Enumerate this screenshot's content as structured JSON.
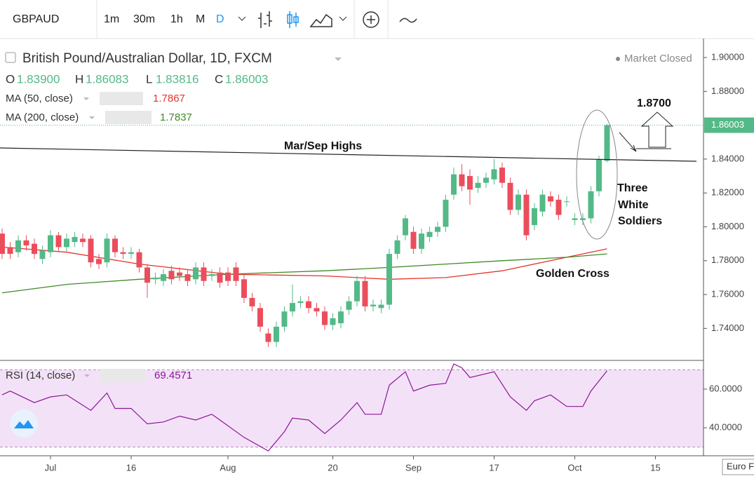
{
  "toolbar": {
    "symbol": "GBPAUD",
    "intervals": [
      "1m",
      "30m",
      "1h",
      "M",
      "D"
    ]
  },
  "chart_data": {
    "type": "candlestick",
    "title": "British Pound/Australian Dollar, 1D, FXCM",
    "status": "Market Closed",
    "ohlc_labels": [
      {
        "key": "O",
        "value": "1.83900"
      },
      {
        "key": "H",
        "value": "1.86083"
      },
      {
        "key": "L",
        "value": "1.83816"
      },
      {
        "key": "C",
        "value": "1.86003"
      }
    ],
    "up_color": "#53b987",
    "down_color": "#eb4d5c",
    "open": [
      1.796,
      1.788,
      1.785,
      1.792,
      1.79,
      1.781,
      1.785,
      1.795,
      1.788,
      1.791,
      1.793,
      1.793,
      1.781,
      1.779,
      1.793,
      1.785,
      1.784,
      1.785,
      1.776,
      1.769,
      1.768,
      1.774,
      1.773,
      1.772,
      1.769,
      1.776,
      1.771,
      1.773,
      1.773,
      1.776,
      1.769,
      1.758,
      1.752,
      1.737,
      1.732,
      1.741,
      1.75,
      1.755,
      1.756,
      1.752,
      1.75,
      1.742,
      1.743,
      1.751,
      1.756,
      1.768,
      1.753,
      1.752,
      1.754,
      1.784,
      1.795,
      1.797,
      1.787,
      1.794,
      1.797,
      1.8,
      1.819,
      1.831,
      1.83,
      1.823,
      1.826,
      1.828,
      1.835,
      1.826,
      1.81,
      1.819,
      1.801,
      1.809,
      1.818,
      1.816,
      1.815,
      1.804,
      1.804,
      1.805,
      1.821,
      1.839
    ],
    "high": [
      1.799,
      1.791,
      1.795,
      1.795,
      1.793,
      1.789,
      1.798,
      1.797,
      1.796,
      1.797,
      1.796,
      1.795,
      1.784,
      1.796,
      1.795,
      1.788,
      1.788,
      1.787,
      1.778,
      1.773,
      1.775,
      1.777,
      1.776,
      1.775,
      1.779,
      1.779,
      1.775,
      1.776,
      1.776,
      1.779,
      1.772,
      1.761,
      1.755,
      1.74,
      1.744,
      1.753,
      1.766,
      1.759,
      1.759,
      1.755,
      1.753,
      1.749,
      1.753,
      1.759,
      1.771,
      1.771,
      1.757,
      1.757,
      1.787,
      1.795,
      1.807,
      1.8,
      1.799,
      1.8,
      1.803,
      1.819,
      1.835,
      1.837,
      1.834,
      1.83,
      1.832,
      1.84,
      1.838,
      1.829,
      1.822,
      1.822,
      1.814,
      1.822,
      1.821,
      1.819,
      1.818,
      1.808,
      1.808,
      1.824,
      1.842,
      1.86083
    ],
    "low": [
      1.781,
      1.781,
      1.782,
      1.786,
      1.781,
      1.778,
      1.782,
      1.785,
      1.785,
      1.788,
      1.788,
      1.776,
      1.775,
      1.776,
      1.782,
      1.781,
      1.781,
      1.773,
      1.758,
      1.766,
      1.765,
      1.766,
      1.768,
      1.765,
      1.766,
      1.765,
      1.768,
      1.764,
      1.765,
      1.765,
      1.755,
      1.75,
      1.738,
      1.729,
      1.729,
      1.738,
      1.747,
      1.752,
      1.749,
      1.747,
      1.739,
      1.739,
      1.74,
      1.748,
      1.753,
      1.75,
      1.75,
      1.749,
      1.751,
      1.781,
      1.792,
      1.784,
      1.784,
      1.791,
      1.794,
      1.797,
      1.816,
      1.821,
      1.813,
      1.82,
      1.823,
      1.825,
      1.823,
      1.807,
      1.807,
      1.792,
      1.798,
      1.806,
      1.812,
      1.804,
      1.812,
      1.801,
      1.801,
      1.802,
      1.818,
      1.83816
    ],
    "close": [
      1.784,
      1.784,
      1.792,
      1.789,
      1.784,
      1.786,
      1.795,
      1.788,
      1.793,
      1.794,
      1.791,
      1.779,
      1.778,
      1.793,
      1.785,
      1.784,
      1.785,
      1.776,
      1.767,
      1.77,
      1.772,
      1.769,
      1.771,
      1.768,
      1.776,
      1.768,
      1.772,
      1.767,
      1.768,
      1.768,
      1.758,
      1.753,
      1.741,
      1.732,
      1.741,
      1.75,
      1.755,
      1.756,
      1.752,
      1.75,
      1.742,
      1.746,
      1.75,
      1.756,
      1.768,
      1.753,
      1.754,
      1.754,
      1.784,
      1.792,
      1.805,
      1.787,
      1.796,
      1.797,
      1.8,
      1.816,
      1.831,
      1.824,
      1.822,
      1.826,
      1.829,
      1.834,
      1.826,
      1.81,
      1.819,
      1.795,
      1.811,
      1.819,
      1.815,
      1.807,
      1.815,
      1.805,
      1.805,
      1.821,
      1.84,
      1.86003
    ],
    "xlim": [
      -0.26,
      86.96
    ],
    "xticks": [
      {
        "value": 6,
        "label": "Jul"
      },
      16,
      {
        "value": 28,
        "label": "Aug"
      },
      {
        "value": 41,
        "label": "20"
      },
      {
        "value": 51,
        "label": "Sep"
      },
      {
        "value": 61,
        "label": "17"
      },
      {
        "value": 71,
        "label": "Oct"
      },
      {
        "value": 81,
        "label": "15"
      }
    ],
    "ylim": [
      1.7215,
      1.9083
    ],
    "yticks": [
      {
        "value": 1.74,
        "label": "1.74000"
      },
      {
        "value": 1.76,
        "label": "1.76000"
      },
      {
        "value": 1.78,
        "label": "1.78000"
      },
      {
        "value": 1.8,
        "label": "1.80000"
      },
      {
        "value": 1.82,
        "label": "1.82000"
      },
      {
        "value": 1.84,
        "label": "1.84000"
      },
      {
        "value": 1.88,
        "label": "1.88000"
      },
      {
        "value": 1.9,
        "label": "1.90000"
      }
    ],
    "last_price": {
      "value": 1.86003,
      "label": "1.86003"
    },
    "moving_averages": [
      {
        "name": "MA (50, close)",
        "value_label": "1.7867",
        "color": "#e5352b",
        "x": [
          0,
          8,
          17,
          28,
          40,
          48,
          55,
          62,
          70,
          75
        ],
        "values": [
          1.788,
          1.785,
          1.778,
          1.772,
          1.771,
          1.769,
          1.77,
          1.774,
          1.782,
          1.787
        ]
      },
      {
        "name": "MA (200, close)",
        "value_label": "1.7837",
        "color": "#3f8a2a",
        "x": [
          0,
          8,
          17,
          28,
          40,
          48,
          55,
          62,
          70,
          75
        ],
        "values": [
          1.761,
          1.766,
          1.769,
          1.772,
          1.774,
          1.776,
          1.778,
          1.78,
          1.782,
          1.784
        ]
      }
    ],
    "annotations": {
      "trendline": "Mar/Sep Highs",
      "target": "1.8700",
      "pattern": [
        "Three",
        "White",
        "Soldiers"
      ],
      "cross": "Golden Cross"
    },
    "rsi": {
      "name": "RSI (14, close)",
      "value_label": "69.4571",
      "color": "#8e1599",
      "ylim": [
        25.5,
        74.5
      ],
      "yticks": [
        {
          "value": 40,
          "label": "40.0000"
        },
        {
          "value": 60,
          "label": "60.0000"
        }
      ],
      "bands": [
        30,
        70
      ],
      "x": [
        0,
        1,
        4,
        6,
        8,
        11,
        13,
        14,
        16,
        18,
        20,
        22,
        24,
        26,
        27,
        30,
        33,
        35,
        36,
        38,
        40,
        42,
        44,
        45,
        47,
        48,
        50,
        51,
        53,
        55,
        56,
        57,
        58,
        61,
        63,
        65,
        66,
        68,
        70,
        72,
        73,
        75
      ],
      "values": [
        57,
        59,
        53,
        56,
        57,
        49,
        58,
        50,
        50,
        42,
        43,
        46,
        44,
        47,
        44,
        35,
        28,
        38,
        45,
        44,
        37,
        44,
        53,
        47,
        47,
        62,
        69,
        59,
        62,
        63,
        73,
        71,
        66,
        69,
        56,
        49,
        54,
        57,
        51,
        51,
        59,
        69.5
      ]
    },
    "currency_note": "Euro F"
  }
}
